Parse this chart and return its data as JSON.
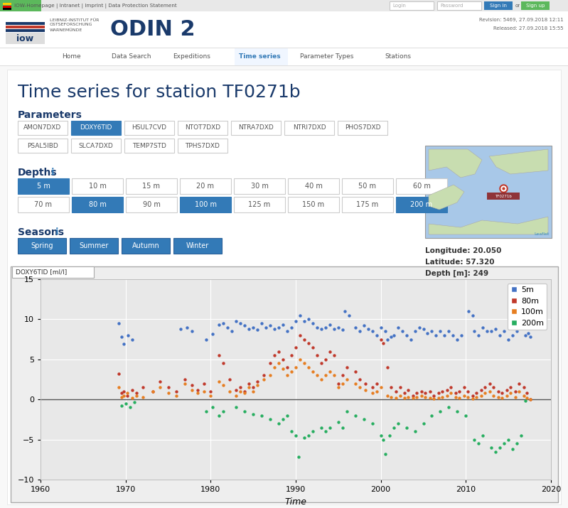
{
  "page_bg": "#f5f5f5",
  "content_bg": "#ffffff",
  "chart_plot_bg": "#e8e8e8",
  "title": "Time series for station TF0271b",
  "title_color": "#1a3a6b",
  "title_fontsize": 18,
  "ylabel_box": "DOXY6TID [ml/l]",
  "xlabel": "Time",
  "ylim": [
    -10,
    15
  ],
  "xlim": [
    1960,
    2020
  ],
  "yticks": [
    -10,
    -5,
    0,
    5,
    10,
    15
  ],
  "xticks": [
    1960,
    1970,
    1980,
    1990,
    2000,
    2010,
    2020
  ],
  "zero_line_color": "#555555",
  "legend_colors": [
    "#4472c4",
    "#c0392b",
    "#e67e22",
    "#27ae60"
  ],
  "legend_labels": [
    "5m",
    "80m",
    "100m",
    "200m"
  ],
  "series_5m": [
    [
      1969.2,
      9.5
    ],
    [
      1969.5,
      7.8
    ],
    [
      1969.8,
      6.9
    ],
    [
      1970.3,
      8.0
    ],
    [
      1970.8,
      7.5
    ],
    [
      1976.5,
      8.8
    ],
    [
      1977.2,
      9.0
    ],
    [
      1977.8,
      8.5
    ],
    [
      1979.5,
      7.5
    ],
    [
      1980.2,
      8.2
    ],
    [
      1981.0,
      9.3
    ],
    [
      1981.5,
      9.5
    ],
    [
      1982.0,
      9.0
    ],
    [
      1982.5,
      8.5
    ],
    [
      1983.0,
      9.8
    ],
    [
      1983.5,
      9.5
    ],
    [
      1984.0,
      9.2
    ],
    [
      1984.5,
      8.8
    ],
    [
      1985.0,
      9.0
    ],
    [
      1985.5,
      8.7
    ],
    [
      1986.0,
      9.5
    ],
    [
      1986.5,
      9.0
    ],
    [
      1987.0,
      9.2
    ],
    [
      1987.5,
      8.8
    ],
    [
      1988.0,
      9.0
    ],
    [
      1988.5,
      9.3
    ],
    [
      1989.0,
      8.5
    ],
    [
      1989.5,
      9.0
    ],
    [
      1990.0,
      9.8
    ],
    [
      1990.5,
      10.5
    ],
    [
      1991.0,
      9.8
    ],
    [
      1991.5,
      10.0
    ],
    [
      1992.0,
      9.5
    ],
    [
      1992.5,
      9.0
    ],
    [
      1993.0,
      8.8
    ],
    [
      1993.5,
      9.0
    ],
    [
      1994.0,
      9.3
    ],
    [
      1994.5,
      8.8
    ],
    [
      1995.0,
      9.0
    ],
    [
      1995.5,
      8.7
    ],
    [
      1995.8,
      11.0
    ],
    [
      1996.3,
      10.5
    ],
    [
      1997.0,
      9.0
    ],
    [
      1997.5,
      8.5
    ],
    [
      1998.0,
      9.2
    ],
    [
      1998.5,
      8.8
    ],
    [
      1999.0,
      8.5
    ],
    [
      1999.5,
      8.0
    ],
    [
      2000.0,
      9.0
    ],
    [
      2000.5,
      8.5
    ],
    [
      2000.8,
      7.5
    ],
    [
      2001.2,
      7.8
    ],
    [
      2001.5,
      8.0
    ],
    [
      2002.0,
      9.0
    ],
    [
      2002.5,
      8.5
    ],
    [
      2003.0,
      8.0
    ],
    [
      2003.5,
      7.5
    ],
    [
      2004.0,
      8.5
    ],
    [
      2004.5,
      9.0
    ],
    [
      2005.0,
      8.8
    ],
    [
      2005.5,
      8.3
    ],
    [
      2006.0,
      8.5
    ],
    [
      2006.5,
      8.0
    ],
    [
      2007.0,
      8.5
    ],
    [
      2007.5,
      8.0
    ],
    [
      2008.0,
      8.5
    ],
    [
      2008.5,
      8.0
    ],
    [
      2009.0,
      7.5
    ],
    [
      2009.5,
      8.0
    ],
    [
      2010.3,
      11.0
    ],
    [
      2010.8,
      10.5
    ],
    [
      2011.0,
      8.5
    ],
    [
      2011.5,
      8.0
    ],
    [
      2012.0,
      9.0
    ],
    [
      2012.5,
      8.5
    ],
    [
      2013.0,
      8.5
    ],
    [
      2013.5,
      8.8
    ],
    [
      2014.0,
      8.0
    ],
    [
      2014.5,
      8.5
    ],
    [
      2015.0,
      7.5
    ],
    [
      2015.5,
      8.0
    ],
    [
      2016.0,
      8.5
    ],
    [
      2016.5,
      9.0
    ],
    [
      2017.0,
      8.0
    ],
    [
      2017.3,
      8.3
    ],
    [
      2017.6,
      7.8
    ]
  ],
  "series_80m": [
    [
      1969.2,
      3.2
    ],
    [
      1969.5,
      0.8
    ],
    [
      1969.8,
      1.0
    ],
    [
      1970.2,
      0.5
    ],
    [
      1970.8,
      1.2
    ],
    [
      1971.3,
      0.8
    ],
    [
      1972.0,
      1.5
    ],
    [
      1973.2,
      1.0
    ],
    [
      1974.0,
      2.2
    ],
    [
      1975.0,
      1.5
    ],
    [
      1976.0,
      1.0
    ],
    [
      1977.0,
      2.5
    ],
    [
      1977.8,
      1.8
    ],
    [
      1978.5,
      1.2
    ],
    [
      1979.2,
      2.0
    ],
    [
      1980.0,
      1.0
    ],
    [
      1981.0,
      5.5
    ],
    [
      1981.5,
      4.5
    ],
    [
      1982.2,
      2.5
    ],
    [
      1983.0,
      1.2
    ],
    [
      1983.5,
      1.5
    ],
    [
      1984.0,
      1.0
    ],
    [
      1984.5,
      2.0
    ],
    [
      1985.0,
      1.5
    ],
    [
      1985.5,
      2.2
    ],
    [
      1986.2,
      3.0
    ],
    [
      1987.0,
      4.5
    ],
    [
      1987.5,
      5.5
    ],
    [
      1988.0,
      6.0
    ],
    [
      1988.5,
      5.0
    ],
    [
      1989.0,
      4.0
    ],
    [
      1989.5,
      5.5
    ],
    [
      1990.0,
      6.5
    ],
    [
      1990.5,
      8.0
    ],
    [
      1991.0,
      7.5
    ],
    [
      1991.5,
      7.0
    ],
    [
      1992.0,
      6.5
    ],
    [
      1992.5,
      5.5
    ],
    [
      1993.0,
      4.5
    ],
    [
      1993.5,
      5.0
    ],
    [
      1994.0,
      6.0
    ],
    [
      1994.5,
      5.5
    ],
    [
      1995.0,
      2.0
    ],
    [
      1995.5,
      3.0
    ],
    [
      1996.0,
      4.0
    ],
    [
      1997.0,
      3.5
    ],
    [
      1997.5,
      2.5
    ],
    [
      1998.2,
      2.0
    ],
    [
      1999.0,
      1.5
    ],
    [
      1999.5,
      2.0
    ],
    [
      2000.0,
      7.5
    ],
    [
      2000.3,
      7.0
    ],
    [
      2000.8,
      4.0
    ],
    [
      2001.2,
      1.5
    ],
    [
      2001.8,
      1.0
    ],
    [
      2002.3,
      1.5
    ],
    [
      2002.8,
      0.8
    ],
    [
      2003.2,
      1.2
    ],
    [
      2003.8,
      0.5
    ],
    [
      2004.2,
      0.8
    ],
    [
      2004.8,
      1.0
    ],
    [
      2005.2,
      0.8
    ],
    [
      2005.8,
      1.0
    ],
    [
      2006.2,
      0.5
    ],
    [
      2006.8,
      0.8
    ],
    [
      2007.2,
      1.0
    ],
    [
      2007.8,
      1.2
    ],
    [
      2008.2,
      1.5
    ],
    [
      2008.8,
      0.8
    ],
    [
      2009.2,
      1.0
    ],
    [
      2009.8,
      1.5
    ],
    [
      2010.2,
      1.0
    ],
    [
      2010.8,
      0.5
    ],
    [
      2011.2,
      0.8
    ],
    [
      2011.8,
      1.2
    ],
    [
      2012.2,
      1.5
    ],
    [
      2012.8,
      2.0
    ],
    [
      2013.2,
      1.5
    ],
    [
      2013.8,
      1.0
    ],
    [
      2014.2,
      0.8
    ],
    [
      2014.8,
      1.2
    ],
    [
      2015.2,
      1.5
    ],
    [
      2015.8,
      1.0
    ],
    [
      2016.2,
      2.0
    ],
    [
      2016.8,
      1.5
    ],
    [
      2017.2,
      0.8
    ],
    [
      2017.6,
      0.0
    ]
  ],
  "series_100m": [
    [
      1969.2,
      1.5
    ],
    [
      1969.5,
      0.3
    ],
    [
      1969.8,
      0.5
    ],
    [
      1970.2,
      0.8
    ],
    [
      1970.8,
      0.2
    ],
    [
      1971.3,
      0.5
    ],
    [
      1972.0,
      0.3
    ],
    [
      1973.2,
      1.0
    ],
    [
      1974.0,
      1.5
    ],
    [
      1975.0,
      0.8
    ],
    [
      1976.0,
      0.5
    ],
    [
      1977.0,
      2.0
    ],
    [
      1977.8,
      1.2
    ],
    [
      1978.5,
      0.8
    ],
    [
      1979.2,
      1.0
    ],
    [
      1980.0,
      0.5
    ],
    [
      1981.0,
      2.2
    ],
    [
      1981.5,
      1.8
    ],
    [
      1982.2,
      1.0
    ],
    [
      1983.0,
      0.5
    ],
    [
      1983.5,
      1.0
    ],
    [
      1984.0,
      0.8
    ],
    [
      1984.5,
      1.5
    ],
    [
      1985.0,
      1.0
    ],
    [
      1985.5,
      1.8
    ],
    [
      1986.2,
      2.5
    ],
    [
      1987.0,
      3.0
    ],
    [
      1987.5,
      4.0
    ],
    [
      1988.0,
      4.5
    ],
    [
      1988.5,
      3.8
    ],
    [
      1989.0,
      3.0
    ],
    [
      1989.5,
      3.5
    ],
    [
      1990.0,
      4.0
    ],
    [
      1990.5,
      5.0
    ],
    [
      1991.0,
      4.5
    ],
    [
      1991.5,
      4.0
    ],
    [
      1992.0,
      3.5
    ],
    [
      1992.5,
      3.0
    ],
    [
      1993.0,
      2.5
    ],
    [
      1993.5,
      3.0
    ],
    [
      1994.0,
      3.5
    ],
    [
      1994.5,
      3.0
    ],
    [
      1995.0,
      1.5
    ],
    [
      1995.5,
      2.0
    ],
    [
      1996.0,
      2.5
    ],
    [
      1997.0,
      2.0
    ],
    [
      1997.5,
      1.5
    ],
    [
      1998.2,
      1.2
    ],
    [
      1999.0,
      0.8
    ],
    [
      1999.5,
      1.0
    ],
    [
      2000.0,
      1.5
    ],
    [
      2000.8,
      0.5
    ],
    [
      2001.2,
      0.3
    ],
    [
      2001.8,
      0.2
    ],
    [
      2002.3,
      0.5
    ],
    [
      2002.8,
      0.2
    ],
    [
      2003.2,
      0.3
    ],
    [
      2003.8,
      0.2
    ],
    [
      2004.2,
      0.3
    ],
    [
      2004.8,
      0.5
    ],
    [
      2005.2,
      0.3
    ],
    [
      2005.8,
      0.2
    ],
    [
      2006.2,
      0.1
    ],
    [
      2006.8,
      0.2
    ],
    [
      2007.2,
      0.3
    ],
    [
      2007.8,
      0.5
    ],
    [
      2008.2,
      0.8
    ],
    [
      2008.8,
      0.3
    ],
    [
      2009.2,
      0.2
    ],
    [
      2009.8,
      0.5
    ],
    [
      2010.2,
      0.3
    ],
    [
      2010.8,
      0.1
    ],
    [
      2011.2,
      0.3
    ],
    [
      2011.8,
      0.5
    ],
    [
      2012.2,
      0.8
    ],
    [
      2012.8,
      1.0
    ],
    [
      2013.2,
      0.5
    ],
    [
      2013.8,
      0.3
    ],
    [
      2014.2,
      0.2
    ],
    [
      2014.8,
      0.5
    ],
    [
      2015.2,
      0.8
    ],
    [
      2015.8,
      0.3
    ],
    [
      2016.2,
      1.0
    ],
    [
      2016.8,
      0.5
    ],
    [
      2017.2,
      0.2
    ],
    [
      2017.6,
      0.0
    ]
  ],
  "series_200m": [
    [
      1969.5,
      -0.8
    ],
    [
      1970.0,
      -0.5
    ],
    [
      1970.5,
      -1.0
    ],
    [
      1971.0,
      -0.3
    ],
    [
      1979.5,
      -1.5
    ],
    [
      1980.2,
      -1.0
    ],
    [
      1981.0,
      -2.0
    ],
    [
      1981.5,
      -1.5
    ],
    [
      1983.0,
      -1.0
    ],
    [
      1984.0,
      -1.5
    ],
    [
      1985.0,
      -1.8
    ],
    [
      1986.0,
      -2.0
    ],
    [
      1987.0,
      -2.5
    ],
    [
      1988.0,
      -3.0
    ],
    [
      1988.5,
      -2.5
    ],
    [
      1989.0,
      -2.0
    ],
    [
      1989.5,
      -4.0
    ],
    [
      1990.0,
      -4.5
    ],
    [
      1990.3,
      -7.2
    ],
    [
      1991.0,
      -4.8
    ],
    [
      1991.5,
      -4.5
    ],
    [
      1992.0,
      -4.0
    ],
    [
      1993.0,
      -3.5
    ],
    [
      1993.5,
      -4.0
    ],
    [
      1994.0,
      -3.5
    ],
    [
      1995.0,
      -2.8
    ],
    [
      1995.5,
      -3.5
    ],
    [
      1996.0,
      -1.5
    ],
    [
      1997.0,
      -2.0
    ],
    [
      1998.0,
      -2.5
    ],
    [
      1999.0,
      -3.0
    ],
    [
      2000.0,
      -4.5
    ],
    [
      2000.3,
      -5.0
    ],
    [
      2000.5,
      -6.8
    ],
    [
      2001.0,
      -4.5
    ],
    [
      2001.5,
      -3.5
    ],
    [
      2002.0,
      -3.0
    ],
    [
      2003.0,
      -3.5
    ],
    [
      2004.0,
      -4.0
    ],
    [
      2005.0,
      -3.0
    ],
    [
      2006.0,
      -2.0
    ],
    [
      2007.0,
      -1.5
    ],
    [
      2008.0,
      -1.0
    ],
    [
      2009.0,
      -1.5
    ],
    [
      2010.0,
      -2.0
    ],
    [
      2011.0,
      -5.0
    ],
    [
      2011.5,
      -5.5
    ],
    [
      2012.0,
      -4.5
    ],
    [
      2013.0,
      -6.0
    ],
    [
      2013.5,
      -6.5
    ],
    [
      2014.0,
      -6.0
    ],
    [
      2014.5,
      -5.5
    ],
    [
      2015.0,
      -5.0
    ],
    [
      2015.5,
      -6.2
    ],
    [
      2016.0,
      -5.5
    ],
    [
      2016.5,
      -4.5
    ],
    [
      2017.0,
      -0.2
    ]
  ],
  "parameters": [
    "AMON7DXD",
    "DOXY6TID",
    "HSUL7CVD",
    "NTOT7DXD",
    "NTRA7DXD",
    "NTRI7DXD",
    "PHOS7DXD",
    "PSAL5IBD",
    "SLCA7DXD",
    "TEMP7STD",
    "TPHS7DXD"
  ],
  "active_parameter": "DOXY6TID",
  "depths_row1": [
    "5 m",
    "10 m",
    "15 m",
    "20 m",
    "30 m",
    "40 m",
    "50 m",
    "60 m"
  ],
  "depths_row2": [
    "70 m",
    "80 m",
    "90 m",
    "100 m",
    "125 m",
    "150 m",
    "175 m",
    "200 m"
  ],
  "active_depths": [
    "5 m",
    "80 m",
    "100 m",
    "200 m"
  ],
  "seasons": [
    "Spring",
    "Summer",
    "Autumn",
    "Winter"
  ],
  "longitude": "20.050",
  "latitude": "57.320",
  "depth_val": "249",
  "nav_items": [
    "Home",
    "Data Search",
    "Expeditions",
    "Time series",
    "Parameter Types",
    "Stations"
  ],
  "active_nav": "Time series",
  "odin_text": "ODIN 2",
  "revision_line1": "Revision: 5469, 27.09.2018 12:11",
  "revision_line2": "Released: 27.09.2018 15:55"
}
